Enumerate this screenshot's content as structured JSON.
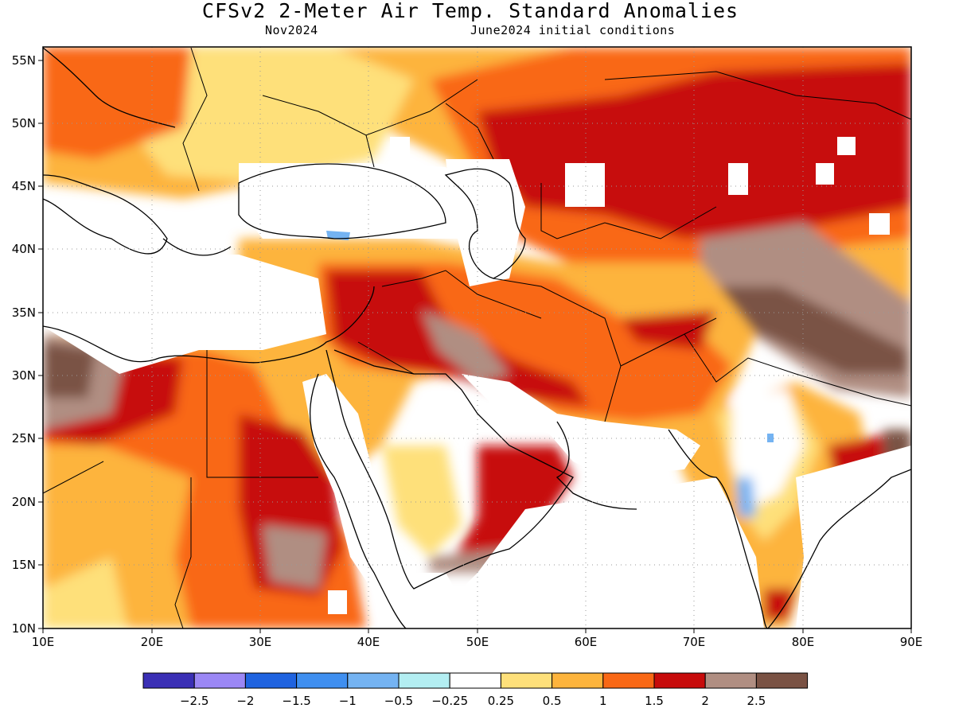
{
  "header": {
    "title": "CFSv2 2-Meter Air Temp. Standard Anomalies",
    "valid_month": "Nov2024",
    "init": "June2024 initial conditions"
  },
  "map": {
    "lon_range": [
      10,
      90
    ],
    "lat_range": [
      10,
      56
    ],
    "lon_ticks": [
      "10E",
      "20E",
      "30E",
      "40E",
      "50E",
      "60E",
      "70E",
      "80E",
      "90E"
    ],
    "lat_ticks": [
      "10N",
      "15N",
      "20N",
      "25N",
      "30N",
      "35N",
      "40N",
      "45N",
      "50N",
      "55N"
    ],
    "grid": "dotted"
  },
  "colorbar": {
    "colors": [
      "#3a2fb5",
      "#9b87f5",
      "#1f63e0",
      "#3f8ff0",
      "#74b3f2",
      "#b3eef2",
      "#ffffff",
      "#fee07a",
      "#fdb43c",
      "#f96815",
      "#c70b0b",
      "#b08e82",
      "#7a5244"
    ],
    "labels": [
      "-2.5",
      "-2",
      "-1.5",
      "-1",
      "-0.5",
      "-0.25",
      "0.25",
      "0.5",
      "1",
      "1.5",
      "2",
      "2.5"
    ]
  },
  "chart_data": {
    "type": "heatmap",
    "title": "CFSv2 2-Meter Air Temp. Standard Anomalies",
    "subtitle": "Nov2024 — June2024 initial conditions",
    "x_range": [
      10,
      90
    ],
    "y_range": [
      10,
      56
    ],
    "regions": [
      {
        "lon": [
          10,
          90
        ],
        "lat": [
          47,
          56
        ],
        "value": 1.2
      },
      {
        "lon": [
          60,
          90
        ],
        "lat": [
          44,
          52
        ],
        "value": 1.8
      },
      {
        "lon": [
          68,
          88
        ],
        "lat": [
          29,
          38
        ],
        "value": 2.2
      },
      {
        "lon": [
          30,
          46
        ],
        "lat": [
          10,
          24
        ],
        "value": 1.6
      },
      {
        "lon": [
          10,
          20
        ],
        "lat": [
          27,
          33
        ],
        "value": 2.6
      },
      {
        "lon": [
          42,
          52
        ],
        "lat": [
          15,
          26
        ],
        "value": 0.7
      },
      {
        "lon": [
          74,
          80
        ],
        "lat": [
          18,
          24
        ],
        "value": -0.6
      },
      {
        "lon": [
          35,
          55
        ],
        "lat": [
          42,
          47
        ],
        "value": 0.0
      },
      {
        "lon": [
          40,
          60
        ],
        "lat": [
          30,
          38
        ],
        "value": 1.9
      }
    ]
  }
}
